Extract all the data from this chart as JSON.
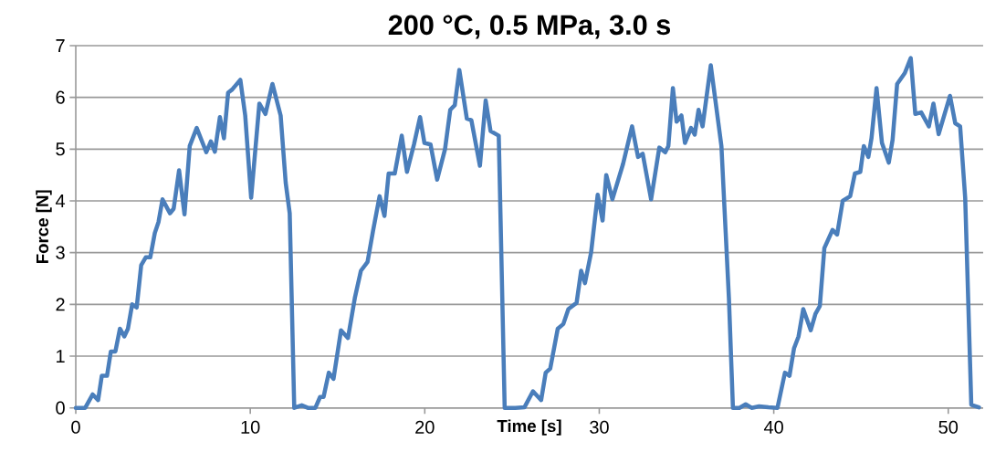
{
  "chart_data": {
    "type": "line",
    "title": "200 °C, 0.5 MPa, 3.0 s",
    "xlabel": "Time [s]",
    "ylabel": "Force [N]",
    "x": [
      0,
      0.54,
      0.97,
      1.28,
      1.49,
      1.79,
      2.01,
      2.27,
      2.53,
      2.78,
      2.99,
      3.23,
      3.49,
      3.75,
      4.01,
      4.27,
      4.53,
      4.74,
      4.97,
      5.4,
      5.61,
      5.92,
      6.23,
      6.53,
      6.93,
      7.48,
      7.74,
      7.97,
      8.26,
      8.49,
      8.73,
      8.96,
      9.43,
      9.71,
      10.05,
      10.52,
      10.87,
      11.27,
      11.74,
      12.03,
      12.26,
      12.52,
      12.95,
      13.3,
      13.73,
      14.0,
      14.2,
      14.5,
      14.77,
      15.2,
      15.6,
      15.99,
      16.34,
      16.72,
      17.03,
      17.41,
      17.69,
      17.93,
      18.28,
      18.68,
      18.98,
      19.38,
      19.73,
      19.98,
      20.33,
      20.71,
      21.16,
      21.46,
      21.72,
      21.98,
      22.41,
      22.67,
      23.16,
      23.49,
      23.77,
      24.24,
      24.58,
      25.19,
      25.71,
      26.2,
      26.67,
      26.93,
      27.19,
      27.62,
      27.94,
      28.23,
      28.7,
      28.96,
      29.18,
      29.53,
      29.91,
      30.19,
      30.4,
      30.75,
      31.36,
      31.88,
      32.22,
      32.49,
      32.97,
      33.44,
      33.78,
      33.96,
      34.22,
      34.43,
      34.71,
      34.91,
      35.26,
      35.47,
      35.69,
      35.92,
      36.39,
      37.0,
      37.43,
      37.66,
      38.03,
      38.39,
      38.73,
      39.16,
      39.69,
      40.21,
      40.64,
      40.9,
      41.16,
      41.42,
      41.69,
      42.12,
      42.39,
      42.64,
      42.9,
      43.37,
      43.63,
      43.95,
      44.38,
      44.65,
      44.96,
      45.16,
      45.42,
      45.6,
      45.89,
      46.2,
      46.59,
      46.81,
      47.07,
      47.51,
      47.85,
      48.11,
      48.45,
      48.89,
      49.15,
      49.45,
      50.1,
      50.4,
      50.68,
      50.97,
      51.32,
      51.76
    ],
    "series": [
      {
        "color": "#4a7ebb",
        "values": [
          0,
          0,
          0.26,
          0.15,
          0.62,
          0.62,
          1.09,
          1.09,
          1.53,
          1.38,
          1.53,
          2.0,
          1.94,
          2.76,
          2.91,
          2.91,
          3.38,
          3.59,
          4.03,
          3.76,
          3.85,
          4.59,
          3.74,
          5.06,
          5.41,
          4.94,
          5.15,
          4.95,
          5.62,
          5.21,
          6.09,
          6.15,
          6.34,
          5.65,
          4.06,
          5.88,
          5.68,
          6.26,
          5.65,
          4.35,
          3.76,
          0,
          0.05,
          0,
          0,
          0.21,
          0.21,
          0.68,
          0.56,
          1.5,
          1.35,
          2.12,
          2.65,
          2.82,
          3.41,
          4.09,
          3.71,
          4.53,
          4.53,
          5.26,
          4.56,
          5.09,
          5.62,
          5.12,
          5.09,
          4.41,
          5.0,
          5.76,
          5.85,
          6.53,
          5.59,
          5.56,
          4.68,
          5.94,
          5.35,
          5.26,
          0,
          0,
          0.01,
          0.32,
          0.15,
          0.68,
          0.76,
          1.53,
          1.62,
          1.91,
          2.03,
          2.65,
          2.41,
          3.0,
          4.12,
          3.62,
          4.5,
          4.03,
          4.71,
          5.44,
          4.85,
          4.91,
          4.03,
          5.03,
          4.94,
          5.06,
          6.18,
          5.53,
          5.65,
          5.12,
          5.41,
          5.28,
          5.76,
          5.44,
          6.62,
          5.06,
          2.12,
          0,
          0,
          0.07,
          0,
          0.03,
          0.01,
          0,
          0.68,
          0.62,
          1.15,
          1.38,
          1.91,
          1.5,
          1.82,
          1.97,
          3.09,
          3.44,
          3.35,
          4.0,
          4.09,
          4.53,
          4.56,
          5.06,
          4.85,
          5.21,
          6.18,
          5.12,
          4.74,
          5.18,
          6.26,
          6.47,
          6.76,
          5.68,
          5.71,
          5.44,
          5.88,
          5.29,
          6.03,
          5.5,
          5.44,
          4.06,
          0.06,
          0.01
        ]
      }
    ],
    "xlim": [
      0,
      52
    ],
    "ylim": [
      0,
      7
    ],
    "xticks": [
      0,
      10,
      20,
      30,
      40,
      50
    ],
    "yticks": [
      0,
      1,
      2,
      3,
      4,
      5,
      6,
      7
    ],
    "grid": "y"
  }
}
